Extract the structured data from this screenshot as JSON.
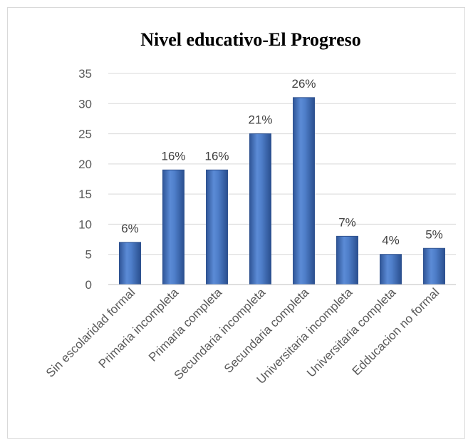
{
  "chart_data": {
    "type": "bar",
    "title": "Nivel educativo-El Progreso",
    "xlabel": "",
    "ylabel": "",
    "ylim": [
      0,
      35
    ],
    "yticks": [
      0,
      5,
      10,
      15,
      20,
      25,
      30,
      35
    ],
    "grid": true,
    "legend": "none",
    "bar_color": "#4a78bd",
    "bar_edge_color": "#2f528f",
    "categories": [
      "Sin escolaridad formal",
      "Primaria incompleta",
      "Primaria completa",
      "Secundaria incompleta",
      "Secundaria completa",
      "Universitaria incompleta",
      "Universitaria completa",
      "Edducacion no formal"
    ],
    "values": [
      7,
      19,
      19,
      25,
      31,
      8,
      5,
      6
    ],
    "data_labels": [
      "6%",
      "16%",
      "16%",
      "21%",
      "26%",
      "7%",
      "4%",
      "5%"
    ]
  }
}
